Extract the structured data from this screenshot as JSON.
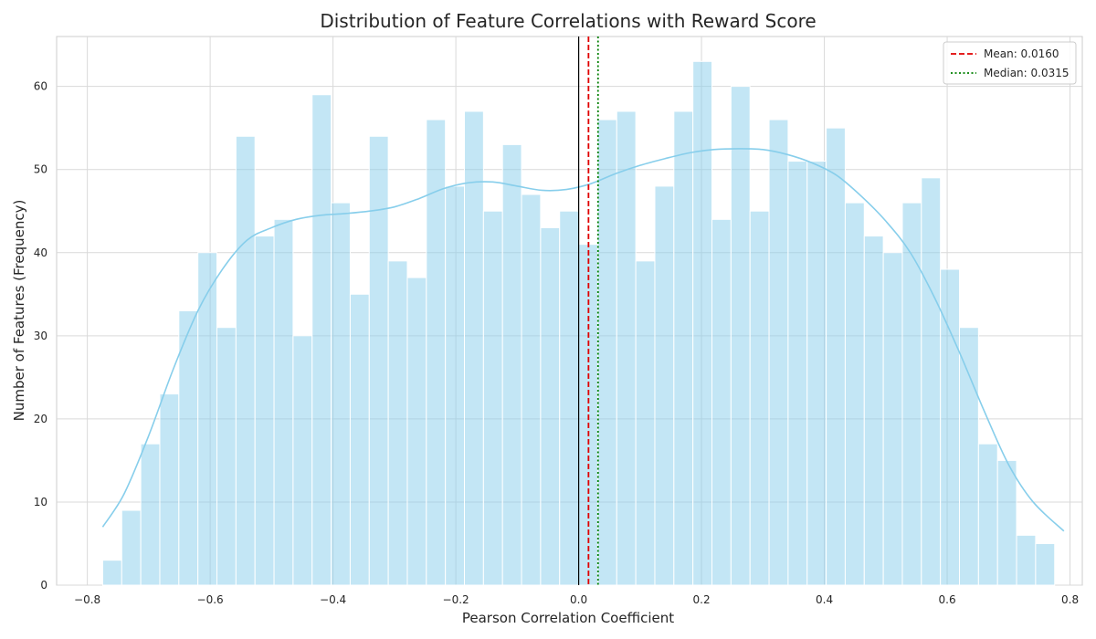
{
  "chart_data": {
    "type": "bar",
    "subtype": "histogram-with-kde",
    "title": "Distribution of Feature Correlations with Reward Score",
    "xlabel": "Pearson Correlation Coefficient",
    "ylabel": "Number of Features (Frequency)",
    "xlim": [
      -0.85,
      0.82
    ],
    "ylim": [
      0,
      66
    ],
    "xticks": [
      -0.8,
      -0.6,
      -0.4,
      -0.2,
      0.0,
      0.2,
      0.4,
      0.6,
      0.8
    ],
    "xtick_labels": [
      "−0.8",
      "−0.6",
      "−0.4",
      "−0.2",
      "0.0",
      "0.2",
      "0.4",
      "0.6",
      "0.8"
    ],
    "yticks": [
      0,
      10,
      20,
      30,
      40,
      50,
      60
    ],
    "ytick_labels": [
      "0",
      "10",
      "20",
      "30",
      "40",
      "50",
      "60"
    ],
    "grid": true,
    "legend_position": "top-right",
    "bins": {
      "start": -0.775,
      "width": 0.031,
      "counts": [
        3,
        9,
        17,
        23,
        33,
        40,
        31,
        54,
        42,
        44,
        30,
        59,
        46,
        35,
        54,
        39,
        37,
        56,
        48,
        57,
        45,
        53,
        47,
        43,
        45,
        41,
        56,
        57,
        39,
        48,
        57,
        63,
        44,
        60,
        45,
        56,
        51,
        51,
        55,
        46,
        42,
        40,
        46,
        49,
        38,
        31,
        17,
        15,
        6,
        5
      ]
    },
    "bar_color": "#87ceeb",
    "kde": {
      "color": "#87ceeb",
      "x": [
        -0.775,
        -0.74,
        -0.7,
        -0.66,
        -0.62,
        -0.58,
        -0.54,
        -0.5,
        -0.46,
        -0.42,
        -0.38,
        -0.34,
        -0.3,
        -0.26,
        -0.22,
        -0.18,
        -0.14,
        -0.1,
        -0.06,
        -0.02,
        0.02,
        0.06,
        0.1,
        0.14,
        0.18,
        0.22,
        0.26,
        0.3,
        0.34,
        0.38,
        0.42,
        0.46,
        0.5,
        0.54,
        0.58,
        0.62,
        0.66,
        0.7,
        0.74,
        0.79
      ],
      "y": [
        7,
        11,
        18,
        26,
        33,
        38,
        41.5,
        43,
        44,
        44.5,
        44.7,
        45,
        45.5,
        46.5,
        47.7,
        48.4,
        48.5,
        48,
        47.5,
        47.6,
        48.3,
        49.5,
        50.5,
        51.3,
        52,
        52.4,
        52.5,
        52.4,
        51.8,
        50.8,
        49.3,
        46.8,
        43.8,
        40,
        34.5,
        28,
        21,
        14.5,
        10,
        6.5
      ]
    },
    "reference_lines": [
      {
        "name": "Mean: 0.0160",
        "x": 0.016,
        "color": "#e00000",
        "style": "dashed",
        "in_legend": true
      },
      {
        "name": "Median: 0.0315",
        "x": 0.0315,
        "color": "#008000",
        "style": "dotted",
        "in_legend": true
      },
      {
        "name": "zero",
        "x": 0.0,
        "color": "#000000",
        "style": "solid",
        "in_legend": false
      }
    ]
  }
}
